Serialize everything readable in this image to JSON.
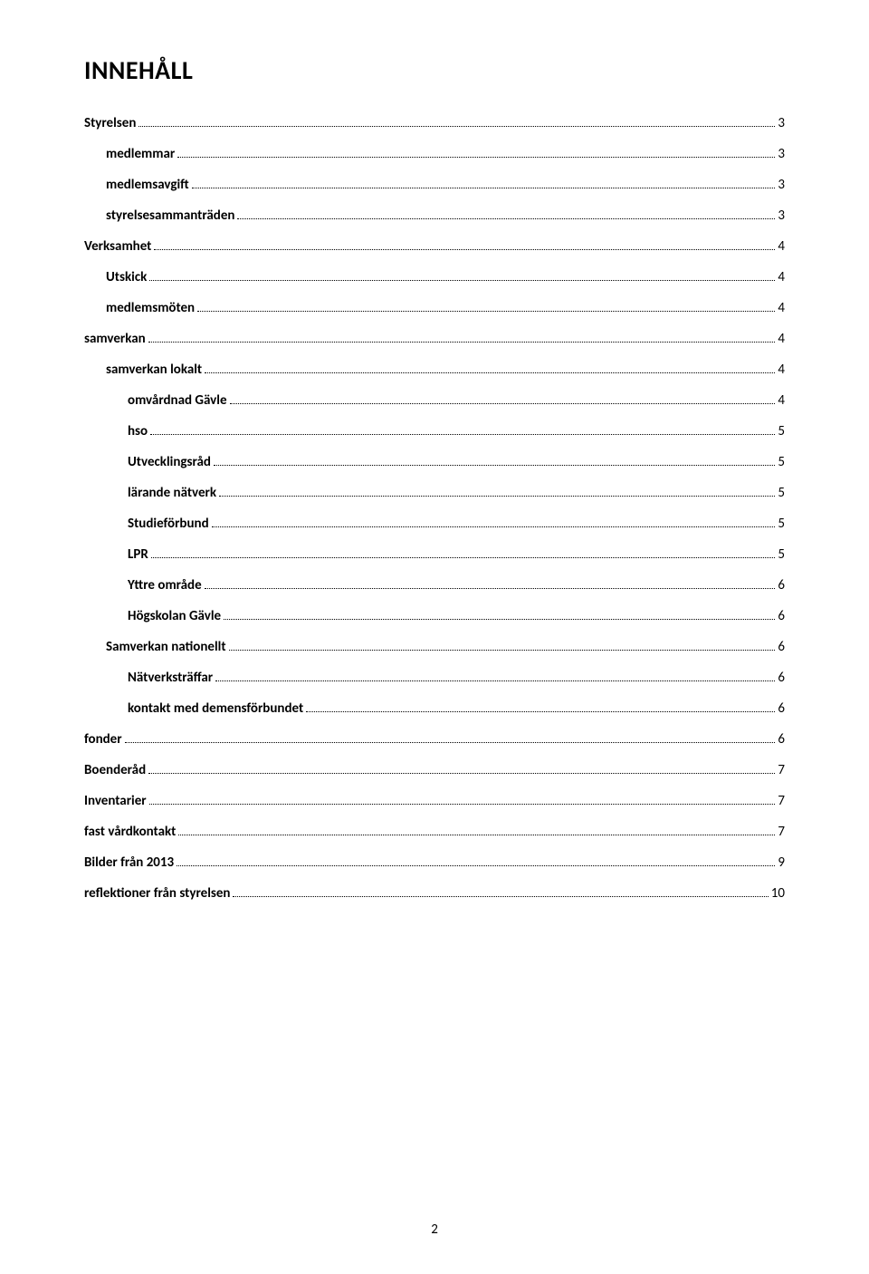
{
  "title": "INNEHÅLL",
  "page_number": "2",
  "colors": {
    "text": "#000000",
    "background": "#ffffff",
    "leader": "#000000"
  },
  "typography": {
    "title_fontsize_pt": 21,
    "entry_fontsize_pt": 11,
    "font_family": "Calibri, Arial, sans-serif"
  },
  "toc": [
    {
      "label": "Styrelsen",
      "page": "3",
      "level": 0
    },
    {
      "label": "medlemmar",
      "page": "3",
      "level": 1
    },
    {
      "label": "medlemsavgift",
      "page": "3",
      "level": 1
    },
    {
      "label": "styrelsesammanträden",
      "page": "3",
      "level": 1
    },
    {
      "label": "Verksamhet",
      "page": "4",
      "level": 0
    },
    {
      "label": "Utskick",
      "page": "4",
      "level": 1
    },
    {
      "label": "medlemsmöten",
      "page": "4",
      "level": 1
    },
    {
      "label": "samverkan",
      "page": "4",
      "level": 0
    },
    {
      "label": "samverkan lokalt",
      "page": "4",
      "level": 1
    },
    {
      "label": "omvårdnad Gävle",
      "page": "4",
      "level": 2
    },
    {
      "label": "hso",
      "page": "5",
      "level": 2
    },
    {
      "label": "Utvecklingsråd",
      "page": "5",
      "level": 2
    },
    {
      "label": "lärande nätverk",
      "page": "5",
      "level": 2
    },
    {
      "label": "Studieförbund",
      "page": "5",
      "level": 2
    },
    {
      "label": "LPR",
      "page": "5",
      "level": 2
    },
    {
      "label": "Yttre område",
      "page": "6",
      "level": 2
    },
    {
      "label": "Högskolan Gävle",
      "page": "6",
      "level": 2
    },
    {
      "label": "Samverkan nationellt",
      "page": "6",
      "level": 1
    },
    {
      "label": "Nätverksträffar",
      "page": "6",
      "level": 2
    },
    {
      "label": "kontakt med demensförbundet",
      "page": "6",
      "level": 2
    },
    {
      "label": "fonder",
      "page": "6",
      "level": 0
    },
    {
      "label": "Boenderåd",
      "page": "7",
      "level": 0
    },
    {
      "label": "Inventarier",
      "page": "7",
      "level": 0
    },
    {
      "label": "fast vårdkontakt",
      "page": "7",
      "level": 0
    },
    {
      "label": "Bilder från 2013",
      "page": "9",
      "level": 0
    },
    {
      "label": "reflektioner från styrelsen",
      "page": "10",
      "level": 0
    }
  ]
}
